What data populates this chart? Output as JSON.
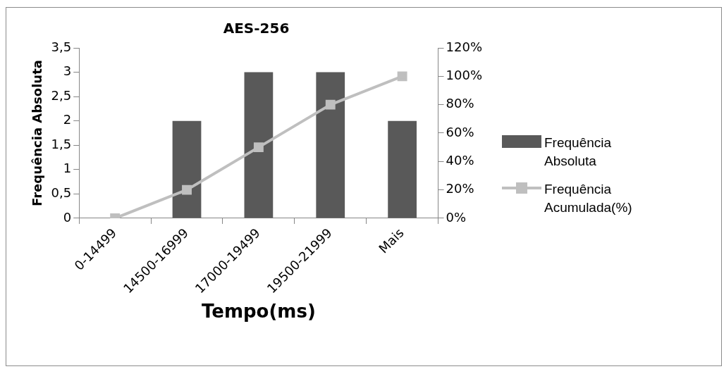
{
  "chart_data": {
    "type": "bar",
    "title": "AES-256",
    "xlabel": "Tempo(ms)",
    "ylabel": "Frequência Absoluta",
    "categories": [
      "0-14499",
      "14500-16999",
      "17000-19499",
      "19500-21999",
      "Mais"
    ],
    "series": [
      {
        "name": "Frequência Absoluta",
        "color": "#595959",
        "values": [
          0,
          2,
          3,
          3,
          2
        ]
      },
      {
        "name": "Frequência Acumulada(%)",
        "type": "line",
        "axis": "y2",
        "color": "#bfbfbf",
        "marker": "square",
        "values": [
          0,
          20,
          50,
          80,
          100
        ]
      }
    ],
    "ylim": [
      0,
      3.5
    ],
    "yticks": [
      0,
      {
        "value": 0.5,
        "label": "0,5"
      },
      1,
      {
        "value": 1.5,
        "label": "1,5"
      },
      2,
      {
        "value": 2.5,
        "label": "2,5"
      },
      3,
      {
        "value": 3.5,
        "label": "3,5"
      }
    ],
    "y2lim": [
      0,
      120
    ],
    "y2ticks": [
      {
        "value": 0,
        "label": "0%"
      },
      {
        "value": 20,
        "label": "20%"
      },
      {
        "value": 40,
        "label": "40%"
      },
      {
        "value": 60,
        "label": "60%"
      },
      {
        "value": 80,
        "label": "80%"
      },
      {
        "value": 100,
        "label": "100%"
      },
      {
        "value": 120,
        "label": "120%"
      }
    ],
    "grid": false,
    "legend": "right"
  }
}
